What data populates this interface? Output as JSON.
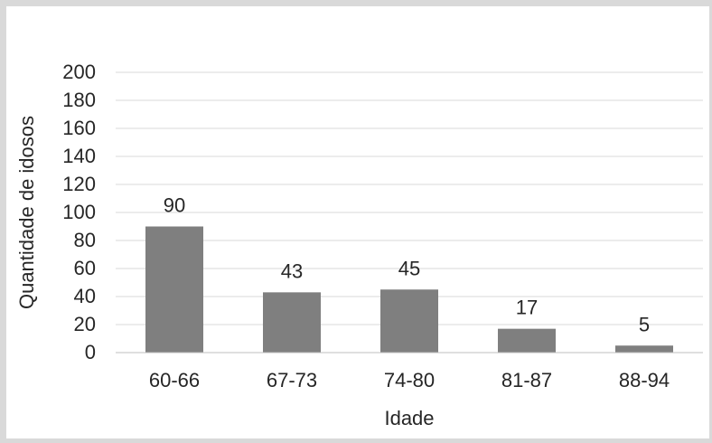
{
  "chart_data": {
    "type": "bar",
    "categories": [
      "60-66",
      "67-73",
      "74-80",
      "81-87",
      "88-94"
    ],
    "values": [
      90,
      43,
      45,
      17,
      5
    ],
    "data_labels": [
      "90",
      "43",
      "45",
      "17",
      "5"
    ],
    "xlabel": "Idade",
    "ylabel": "Quantidade de idosos",
    "ylim": [
      0,
      200
    ],
    "yticks": [
      0,
      20,
      40,
      60,
      80,
      100,
      120,
      140,
      160,
      180,
      200
    ],
    "grid": true,
    "legend": "none",
    "colors": {
      "bar": "#7f7f7f",
      "grid": "#d9d9d9",
      "axis": "#bfbfbf",
      "text": "#262626"
    }
  }
}
